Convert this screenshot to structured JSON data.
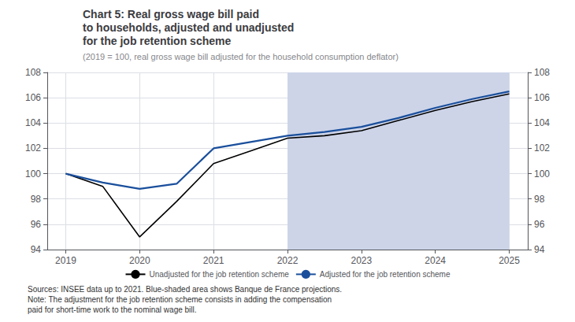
{
  "chart_data": {
    "type": "line",
    "title": "Chart 5: Real gross wage bill paid\nto households, adjusted and unadjusted\nfor the job retention scheme",
    "subtitle": "(2019 = 100, real gross wage bill adjusted for the household consumption deflator)",
    "annotations": [
      "Sources: INSEE data up to 2021. Blue-shaded area shows Banque de France projections.\nNote: The adjustment for the job retention scheme consists in adding the compensation\npaid for short-time work to the nominal wage bill."
    ],
    "x": [
      2019,
      2019.5,
      2020,
      2020.5,
      2021,
      2021.5,
      2022,
      2022.5,
      2023,
      2023.5,
      2024,
      2024.5,
      2025
    ],
    "series": [
      {
        "name": "Unadjusted for the job retention scheme",
        "color": "#000000",
        "values": [
          100.0,
          99.0,
          95.0,
          97.8,
          100.8,
          101.8,
          102.8,
          103.0,
          103.4,
          104.2,
          105.0,
          105.7,
          106.3
        ]
      },
      {
        "name": "Adjusted for the job retention scheme",
        "color": "#1a4f9c",
        "values": [
          100.0,
          99.3,
          98.8,
          99.2,
          102.0,
          102.5,
          103.0,
          103.3,
          103.7,
          104.4,
          105.2,
          105.9,
          106.5
        ]
      }
    ],
    "shaded": {
      "x": [
        2022,
        2025
      ],
      "color": "#cdd4e8"
    },
    "xlim": [
      2018.75,
      2025.25
    ],
    "xticks": [
      2019,
      2020,
      2021,
      2022,
      2023,
      2024,
      2025
    ],
    "ylim": [
      94,
      108
    ],
    "yticks": [
      94,
      96,
      98,
      100,
      102,
      104,
      106,
      108
    ],
    "y2lim": [
      94,
      108
    ],
    "y2ticks": [
      94,
      96,
      98,
      100,
      102,
      104,
      106,
      108
    ],
    "grid": true,
    "legend": "bottom"
  }
}
